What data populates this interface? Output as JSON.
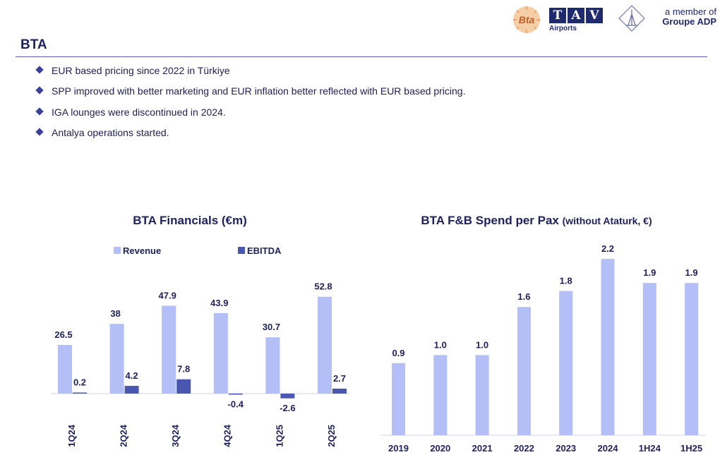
{
  "page": {
    "title": "BTA",
    "bullets": [
      "EUR based pricing since 2022 in Türkiye",
      "SPP improved with better marketing and EUR inflation better reflected with EUR based pricing.",
      "IGA lounges were discontinued in 2024.",
      "Antalya operations started."
    ]
  },
  "header": {
    "bta_logo_text": "Bta",
    "tav_logo_letters": [
      "T",
      "A",
      "V"
    ],
    "tav_logo_sub": "Airports",
    "member_line1": "a member of",
    "member_line2": "Groupe ADP"
  },
  "colors": {
    "revenue": "#b4bef7",
    "ebitda": "#4a57b0",
    "fnb": "#b4bef7",
    "text": "#1f2160",
    "accent": "#3c3f9c"
  },
  "chart_data": [
    {
      "type": "bar",
      "title": "BTA Financials (€m)",
      "categories": [
        "1Q24",
        "2Q24",
        "3Q24",
        "4Q24",
        "1Q25",
        "2Q25"
      ],
      "series": [
        {
          "name": "Revenue",
          "values": [
            26.5,
            38,
            47.9,
            43.9,
            30.7,
            52.8
          ]
        },
        {
          "name": "EBITDA",
          "values": [
            0.2,
            4.2,
            7.8,
            -0.4,
            -2.6,
            2.7
          ]
        }
      ],
      "value_labels": {
        "Revenue": [
          "26.5",
          "38",
          "47.9",
          "43.9",
          "30.7",
          "52.8"
        ],
        "EBITDA": [
          "0.2",
          "4.2",
          "7.8",
          "-0.4",
          "-2.6",
          "2.7"
        ]
      },
      "legend": "top",
      "grid": false,
      "ylim": [
        -5,
        55
      ]
    },
    {
      "type": "bar",
      "title": "BTA F&B Spend per Pax",
      "title_suffix": "(without Ataturk, €)",
      "categories": [
        "2019",
        "2020",
        "2021",
        "2022",
        "2023",
        "2024",
        "1H24",
        "1H25"
      ],
      "values": [
        0.9,
        1.0,
        1.0,
        1.6,
        1.8,
        2.2,
        1.9,
        1.9
      ],
      "value_labels": [
        "0.9",
        "1.0",
        "1.0",
        "1.6",
        "1.8",
        "2.2",
        "1.9",
        "1.9"
      ],
      "grid": false,
      "ylim": [
        0,
        2.2
      ]
    }
  ]
}
